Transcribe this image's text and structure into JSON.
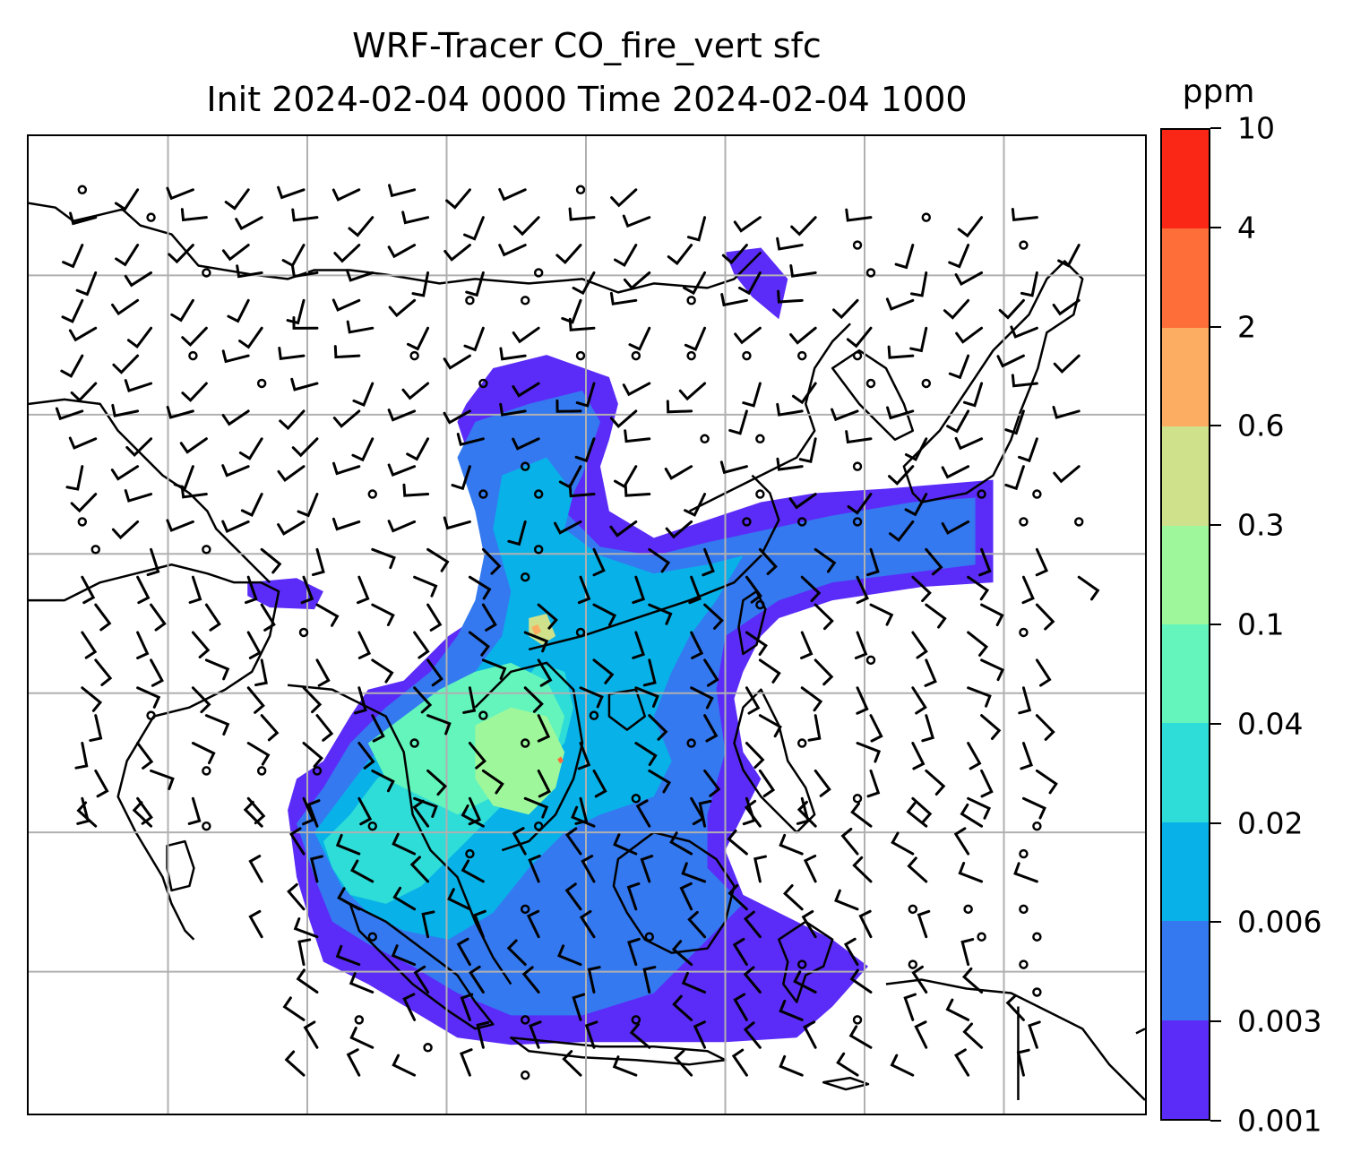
{
  "title": {
    "line1": "WRF-Tracer CO_fire_vert sfc",
    "line2": "Init 2024-02-04 0000 Time 2024-02-04 1000"
  },
  "colorbar": {
    "unit": "ppm",
    "levels": [
      "0.001",
      "0.003",
      "0.006",
      "0.02",
      "0.04",
      "0.1",
      "0.3",
      "0.6",
      "2",
      "4",
      "10"
    ],
    "colors": [
      "#5b2cf8",
      "#3479f0",
      "#08b2e8",
      "#2edcd8",
      "#63f5bc",
      "#9ef89b",
      "#cfe18a",
      "#fdad62",
      "#fe6e38",
      "#fb2716"
    ],
    "orientation": "vertical"
  },
  "map": {
    "gridlines": true,
    "coastlines": true,
    "country_borders": true,
    "wind_barbs": true,
    "colors": {
      "grid": "#b0b0b0",
      "coast": "#000000",
      "barb": "#000000"
    }
  }
}
